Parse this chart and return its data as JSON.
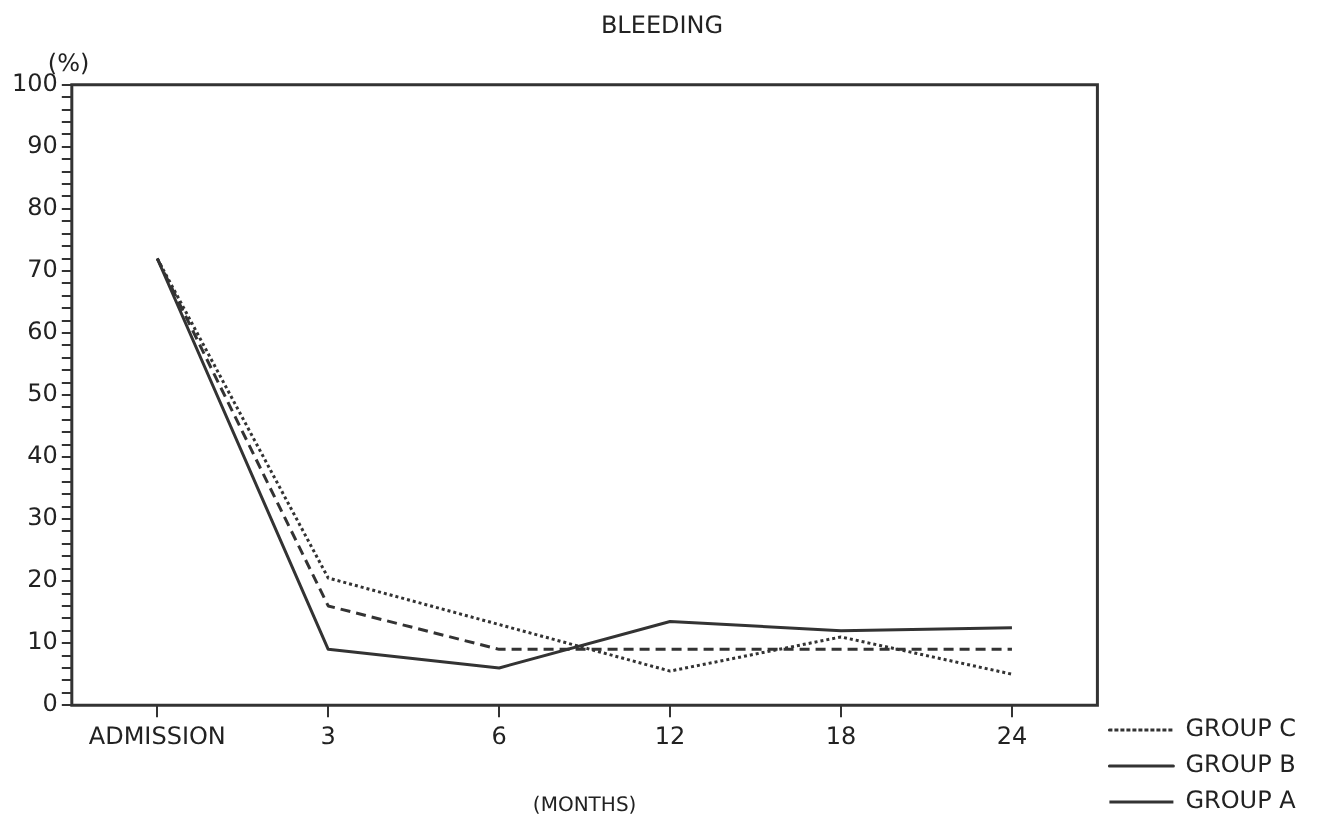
{
  "chart_data": {
    "type": "line",
    "title": "BLEEDING",
    "xlabel": "(MONTHS)",
    "ylabel": "(%)",
    "categories": [
      "ADMISSION",
      "3",
      "6",
      "12",
      "18",
      "24"
    ],
    "series": [
      {
        "name": "GROUP C",
        "color": "#333333",
        "line_style": "dotted",
        "values": [
          72,
          20.5,
          13,
          5.5,
          11,
          5
        ]
      },
      {
        "name": "GROUP B",
        "color": "#333333",
        "line_style": "solid",
        "values": [
          72,
          9,
          6,
          13.5,
          12,
          12.5
        ]
      },
      {
        "name": "GROUP A",
        "color": "#333333",
        "line_style": "dashed",
        "values": [
          72,
          16,
          9,
          9,
          9,
          9
        ]
      }
    ],
    "ylim": [
      0,
      100
    ],
    "yticks": [
      0,
      {
        "value": 2,
        "label": null
      },
      {
        "value": 4,
        "label": null
      },
      {
        "value": 6,
        "label": null
      },
      {
        "value": 8,
        "label": null
      },
      10,
      {
        "value": 12,
        "label": null
      },
      {
        "value": 14,
        "label": null
      },
      {
        "value": 16,
        "label": null
      },
      {
        "value": 18,
        "label": null
      },
      20,
      {
        "value": 22,
        "label": null
      },
      {
        "value": 24,
        "label": null
      },
      {
        "value": 26,
        "label": null
      },
      {
        "value": 28,
        "label": null
      },
      30,
      {
        "value": 32,
        "label": null
      },
      {
        "value": 34,
        "label": null
      },
      {
        "value": 36,
        "label": null
      },
      {
        "value": 38,
        "label": null
      },
      40,
      {
        "value": 42,
        "label": null
      },
      {
        "value": 44,
        "label": null
      },
      {
        "value": 46,
        "label": null
      },
      {
        "value": 48,
        "label": null
      },
      50,
      {
        "value": 52,
        "label": null
      },
      {
        "value": 54,
        "label": null
      },
      {
        "value": 56,
        "label": null
      },
      {
        "value": 58,
        "label": null
      },
      60,
      {
        "value": 62,
        "label": null
      },
      {
        "value": 64,
        "label": null
      },
      {
        "value": 66,
        "label": null
      },
      {
        "value": 68,
        "label": null
      },
      70,
      {
        "value": 72,
        "label": null
      },
      {
        "value": 74,
        "label": null
      },
      {
        "value": 76,
        "label": null
      },
      {
        "value": 78,
        "label": null
      },
      80,
      {
        "value": 82,
        "label": null
      },
      {
        "value": 84,
        "label": null
      },
      {
        "value": 86,
        "label": null
      },
      {
        "value": 88,
        "label": null
      },
      90,
      {
        "value": 92,
        "label": null
      },
      {
        "value": 94,
        "label": null
      },
      {
        "value": 96,
        "label": null
      },
      {
        "value": 98,
        "label": null
      },
      100
    ],
    "grid": false,
    "legend": "bottom right",
    "marker": "none"
  }
}
